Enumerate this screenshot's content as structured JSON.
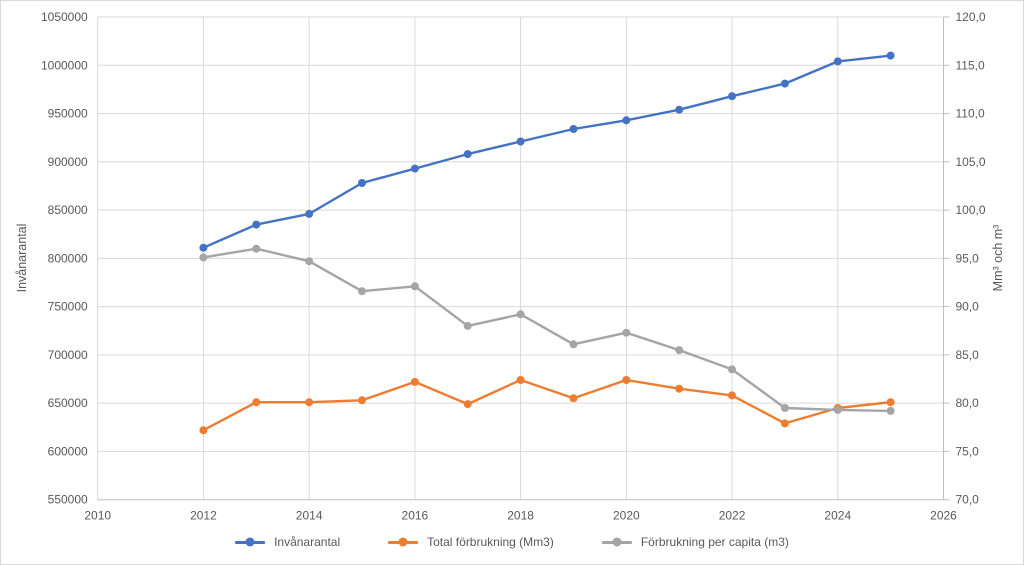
{
  "colors": {
    "series_blue": "#4472C4",
    "series_orange": "#ED7D31",
    "series_gray": "#A5A5A5",
    "grid": "#D9D9D9",
    "axis": "#BFBFBF",
    "text": "#595959",
    "background": "#FFFFFF"
  },
  "chart_data": {
    "type": "line",
    "title": "",
    "x": [
      2012,
      2013,
      2014,
      2015,
      2016,
      2017,
      2018,
      2019,
      2020,
      2021,
      2022,
      2023,
      2024,
      2025
    ],
    "series": [
      {
        "name": "Invånarantal",
        "axis": "left",
        "color": "#4472C4",
        "values": [
          811000,
          835000,
          846000,
          878000,
          893000,
          908000,
          921000,
          934000,
          943000,
          954000,
          968000,
          981000,
          1004000,
          1010000
        ]
      },
      {
        "name": "Total förbrukning (Mm3)",
        "axis": "right",
        "color": "#ED7D31",
        "values": [
          77.2,
          80.1,
          80.1,
          80.3,
          82.2,
          79.9,
          82.4,
          80.5,
          82.4,
          81.5,
          80.8,
          77.9,
          79.5,
          80.1
        ]
      },
      {
        "name": "Förbrukning per capita (m3)",
        "axis": "right",
        "color": "#A5A5A5",
        "values": [
          95.1,
          96.0,
          94.7,
          91.6,
          92.1,
          88.0,
          89.2,
          86.1,
          87.3,
          85.5,
          83.5,
          79.5,
          79.3,
          79.2
        ]
      }
    ],
    "left_axis": {
      "label": "Invånarantal",
      "min": 550000,
      "max": 1050000,
      "tick_labels": [
        "550000",
        "600000",
        "650000",
        "700000",
        "750000",
        "800000",
        "850000",
        "900000",
        "950000",
        "1000000",
        "1050000"
      ]
    },
    "right_axis": {
      "label": "Mm³ och m³",
      "min": 70,
      "max": 120,
      "tick_labels": [
        "70,0",
        "75,0",
        "80,0",
        "85,0",
        "90,0",
        "95,0",
        "100,0",
        "105,0",
        "110,0",
        "115,0",
        "120,0"
      ]
    },
    "x_axis": {
      "min": 2010,
      "max": 2026,
      "tick_labels": [
        "2010",
        "2012",
        "2014",
        "2016",
        "2018",
        "2020",
        "2022",
        "2024",
        "2026"
      ]
    },
    "grid": true,
    "legend_position": "bottom"
  }
}
